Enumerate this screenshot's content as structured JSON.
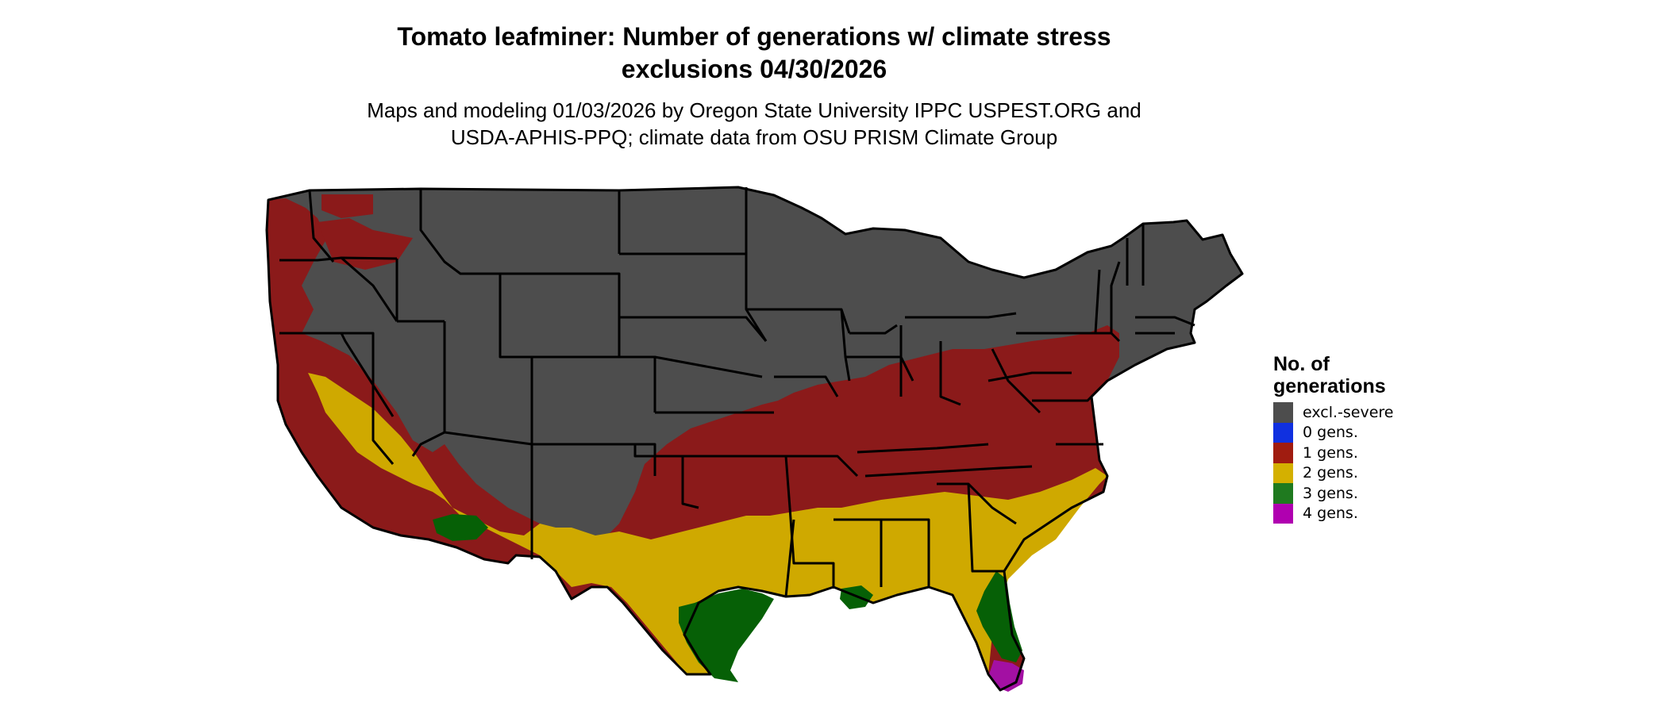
{
  "header": {
    "title_line1": "Tomato leafminer: Number of generations w/ climate stress",
    "title_line2": "exclusions 04/30/2026",
    "subtitle_line1": "Maps and modeling 01/03/2026 by Oregon State University IPPC USPEST.ORG and",
    "subtitle_line2": "USDA-APHIS-PPQ; climate data from OSU PRISM Climate Group"
  },
  "legend": {
    "title_line1": "No. of",
    "title_line2": "generations",
    "items": [
      {
        "label": "excl.-severe",
        "color": "#4d4d4d"
      },
      {
        "label": "0 gens.",
        "color": "#1030e0"
      },
      {
        "label": "1 gens.",
        "color": "#a01c10"
      },
      {
        "label": "2 gens.",
        "color": "#d4b000"
      },
      {
        "label": "3 gens.",
        "color": "#1f7a1f"
      },
      {
        "label": "4 gens.",
        "color": "#b000b0"
      }
    ]
  },
  "map_colors": {
    "excluded": "#4d4d4d",
    "one_gen": "#8b1a1a",
    "two_gens": "#cfa900",
    "three_gens": "#066006",
    "four_gens": "#a310a3",
    "border": "#000000"
  }
}
